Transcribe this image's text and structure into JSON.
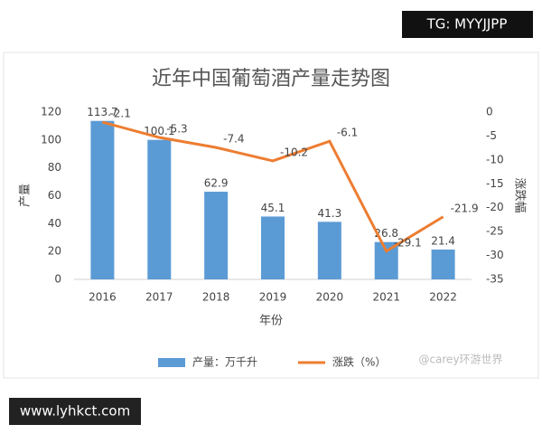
{
  "chart_data": {
    "type": "bar_line",
    "title": "近年中国葡萄酒产量走势图",
    "categories": [
      "2016",
      "2017",
      "2018",
      "2019",
      "2020",
      "2021",
      "2022"
    ],
    "series": [
      {
        "name": "产量：万千升",
        "color": "#5b9bd5",
        "type": "bar",
        "values": [
          113.7,
          100.1,
          62.9,
          45.1,
          41.3,
          26.8,
          21.4
        ]
      },
      {
        "name": "涨跌（%）",
        "color": "#ed7d31",
        "type": "line",
        "axis": "y2",
        "values": [
          -2.1,
          -5.3,
          -7.4,
          -10.2,
          -6.1,
          -29.1,
          -21.9
        ]
      }
    ],
    "ylim": [
      0,
      120
    ],
    "yticks": [
      0,
      20,
      40,
      60,
      80,
      100,
      120
    ],
    "y2lim": [
      -35,
      0
    ],
    "y2ticks": [
      0,
      -5,
      -10,
      -15,
      -20,
      -25,
      -30,
      -35
    ],
    "ylabel": "产量",
    "y2label": "涨跌幅",
    "xlabel": "年份",
    "legend": "bottom",
    "grid": false
  },
  "watermarks": {
    "top": "TG: MYYJJPP",
    "bottom": "www.lyhkct.com",
    "corner": "@carey环游世界"
  }
}
